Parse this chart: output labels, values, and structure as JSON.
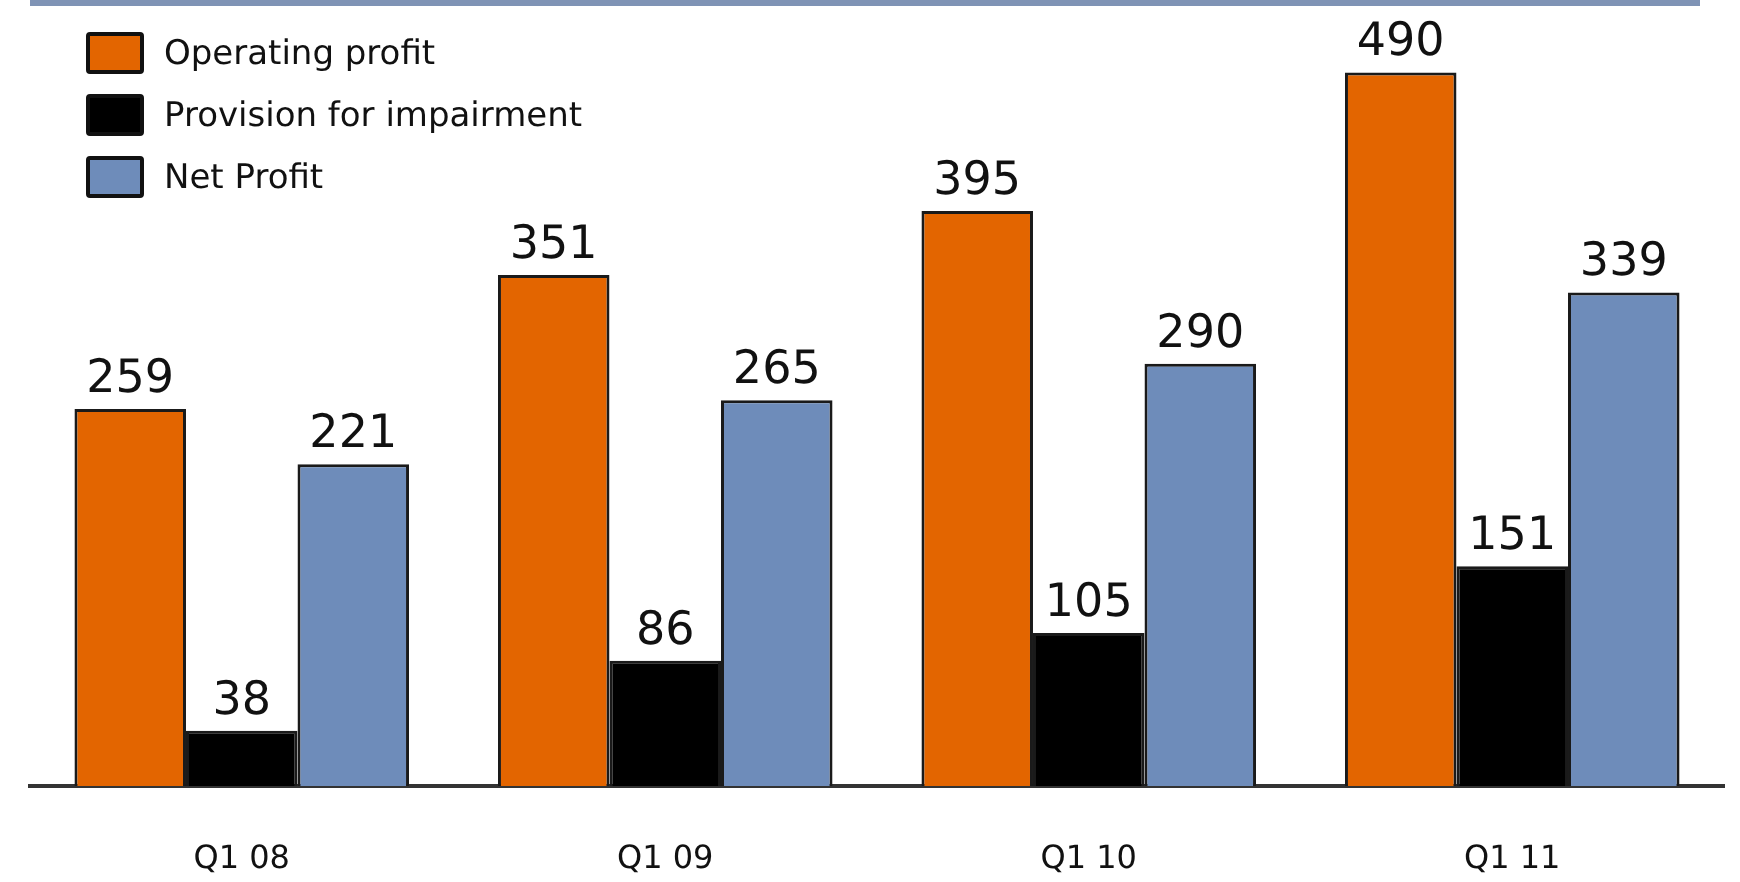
{
  "chart_data": {
    "type": "bar",
    "categories": [
      "Q1 08",
      "Q1 09",
      "Q1 10",
      "Q1 11"
    ],
    "series": [
      {
        "name": "Operating profit",
        "color": "#e36500",
        "values": [
          259,
          351,
          395,
          490
        ]
      },
      {
        "name": "Provision for impairment",
        "color": "#000000",
        "values": [
          38,
          86,
          105,
          151
        ]
      },
      {
        "name": "Net Profit",
        "color": "#6e8cba",
        "values": [
          221,
          265,
          290,
          339
        ]
      }
    ],
    "data_labels": true,
    "legend": "top left",
    "tick_labels": "x"
  }
}
